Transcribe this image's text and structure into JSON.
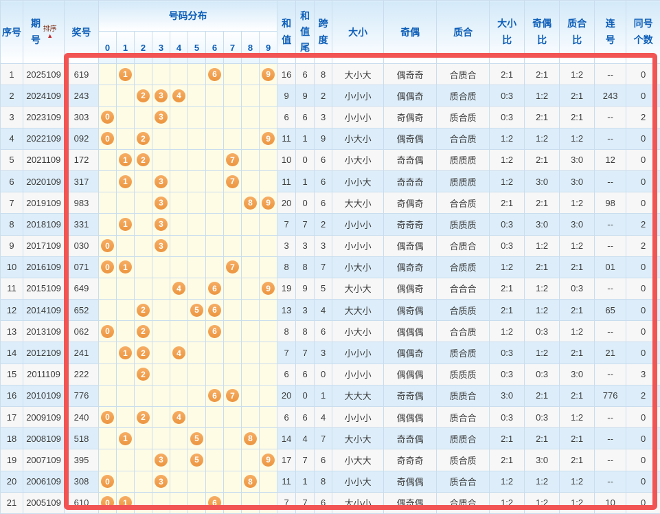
{
  "colors": {
    "accent_red": "#f25454",
    "ball_orange": "#f0a050",
    "header_blue": "#0d5eb8",
    "row_even": "#ddeefa",
    "row_odd": "#f7f7f7",
    "distribution_bg": "#fffce6"
  },
  "table": {
    "headers": {
      "serial": "序号",
      "period": "期号",
      "sort_label": "排序",
      "sort_arrow": "▲",
      "prize": "奖号",
      "distribution": "号码分布",
      "digits": [
        "0",
        "1",
        "2",
        "3",
        "4",
        "5",
        "6",
        "7",
        "8",
        "9"
      ],
      "sum": "和值",
      "sum_tail": "和值尾",
      "span": "跨度",
      "size": "大小",
      "odd_even": "奇偶",
      "prime_composite": "质合",
      "size_ratio": "大小比",
      "odd_even_ratio": "奇偶比",
      "prime_composite_ratio": "质合比",
      "consecutive": "连号",
      "same_count": "同号个数"
    },
    "rows": [
      {
        "no": "1",
        "period": "2025109",
        "prize": "619",
        "balls": [
          1,
          6,
          9
        ],
        "sum": "16",
        "tail": "6",
        "span": "8",
        "size": "大小大",
        "oe": "偶奇奇",
        "pc": "合质合",
        "ratio_size": "2:1",
        "ratio_oe": "2:1",
        "ratio_pc": "1:2",
        "consec": "--",
        "same": "0"
      },
      {
        "no": "2",
        "period": "2024109",
        "prize": "243",
        "balls": [
          2,
          3,
          4
        ],
        "sum": "9",
        "tail": "9",
        "span": "2",
        "size": "小小小",
        "oe": "偶偶奇",
        "pc": "质合质",
        "ratio_size": "0:3",
        "ratio_oe": "1:2",
        "ratio_pc": "2:1",
        "consec": "243",
        "same": "0"
      },
      {
        "no": "3",
        "period": "2023109",
        "prize": "303",
        "balls": [
          0,
          3
        ],
        "sum": "6",
        "tail": "6",
        "span": "3",
        "size": "小小小",
        "oe": "奇偶奇",
        "pc": "质合质",
        "ratio_size": "0:3",
        "ratio_oe": "2:1",
        "ratio_pc": "2:1",
        "consec": "--",
        "same": "2"
      },
      {
        "no": "4",
        "period": "2022109",
        "prize": "092",
        "balls": [
          0,
          2,
          9
        ],
        "sum": "11",
        "tail": "1",
        "span": "9",
        "size": "小大小",
        "oe": "偶奇偶",
        "pc": "合合质",
        "ratio_size": "1:2",
        "ratio_oe": "1:2",
        "ratio_pc": "1:2",
        "consec": "--",
        "same": "0"
      },
      {
        "no": "5",
        "period": "2021109",
        "prize": "172",
        "balls": [
          1,
          2,
          7
        ],
        "sum": "10",
        "tail": "0",
        "span": "6",
        "size": "小大小",
        "oe": "奇奇偶",
        "pc": "质质质",
        "ratio_size": "1:2",
        "ratio_oe": "2:1",
        "ratio_pc": "3:0",
        "consec": "12",
        "same": "0"
      },
      {
        "no": "6",
        "period": "2020109",
        "prize": "317",
        "balls": [
          1,
          3,
          7
        ],
        "sum": "11",
        "tail": "1",
        "span": "6",
        "size": "小小大",
        "oe": "奇奇奇",
        "pc": "质质质",
        "ratio_size": "1:2",
        "ratio_oe": "3:0",
        "ratio_pc": "3:0",
        "consec": "--",
        "same": "0"
      },
      {
        "no": "7",
        "period": "2019109",
        "prize": "983",
        "balls": [
          3,
          8,
          9
        ],
        "sum": "20",
        "tail": "0",
        "span": "6",
        "size": "大大小",
        "oe": "奇偶奇",
        "pc": "合合质",
        "ratio_size": "2:1",
        "ratio_oe": "2:1",
        "ratio_pc": "1:2",
        "consec": "98",
        "same": "0"
      },
      {
        "no": "8",
        "period": "2018109",
        "prize": "331",
        "balls": [
          1,
          3
        ],
        "sum": "7",
        "tail": "7",
        "span": "2",
        "size": "小小小",
        "oe": "奇奇奇",
        "pc": "质质质",
        "ratio_size": "0:3",
        "ratio_oe": "3:0",
        "ratio_pc": "3:0",
        "consec": "--",
        "same": "2"
      },
      {
        "no": "9",
        "period": "2017109",
        "prize": "030",
        "balls": [
          0,
          3
        ],
        "sum": "3",
        "tail": "3",
        "span": "3",
        "size": "小小小",
        "oe": "偶奇偶",
        "pc": "合质合",
        "ratio_size": "0:3",
        "ratio_oe": "1:2",
        "ratio_pc": "1:2",
        "consec": "--",
        "same": "2"
      },
      {
        "no": "10",
        "period": "2016109",
        "prize": "071",
        "balls": [
          0,
          1,
          7
        ],
        "sum": "8",
        "tail": "8",
        "span": "7",
        "size": "小大小",
        "oe": "偶奇奇",
        "pc": "合质质",
        "ratio_size": "1:2",
        "ratio_oe": "2:1",
        "ratio_pc": "2:1",
        "consec": "01",
        "same": "0"
      },
      {
        "no": "11",
        "period": "2015109",
        "prize": "649",
        "balls": [
          4,
          6,
          9
        ],
        "sum": "19",
        "tail": "9",
        "span": "5",
        "size": "大小大",
        "oe": "偶偶奇",
        "pc": "合合合",
        "ratio_size": "2:1",
        "ratio_oe": "1:2",
        "ratio_pc": "0:3",
        "consec": "--",
        "same": "0"
      },
      {
        "no": "12",
        "period": "2014109",
        "prize": "652",
        "balls": [
          2,
          5,
          6
        ],
        "sum": "13",
        "tail": "3",
        "span": "4",
        "size": "大大小",
        "oe": "偶奇偶",
        "pc": "合质质",
        "ratio_size": "2:1",
        "ratio_oe": "1:2",
        "ratio_pc": "2:1",
        "consec": "65",
        "same": "0"
      },
      {
        "no": "13",
        "period": "2013109",
        "prize": "062",
        "balls": [
          0,
          2,
          6
        ],
        "sum": "8",
        "tail": "8",
        "span": "6",
        "size": "小大小",
        "oe": "偶偶偶",
        "pc": "合合质",
        "ratio_size": "1:2",
        "ratio_oe": "0:3",
        "ratio_pc": "1:2",
        "consec": "--",
        "same": "0"
      },
      {
        "no": "14",
        "period": "2012109",
        "prize": "241",
        "balls": [
          1,
          2,
          4
        ],
        "sum": "7",
        "tail": "7",
        "span": "3",
        "size": "小小小",
        "oe": "偶偶奇",
        "pc": "质合质",
        "ratio_size": "0:3",
        "ratio_oe": "1:2",
        "ratio_pc": "2:1",
        "consec": "21",
        "same": "0"
      },
      {
        "no": "15",
        "period": "2011109",
        "prize": "222",
        "balls": [
          2
        ],
        "sum": "6",
        "tail": "6",
        "span": "0",
        "size": "小小小",
        "oe": "偶偶偶",
        "pc": "质质质",
        "ratio_size": "0:3",
        "ratio_oe": "0:3",
        "ratio_pc": "3:0",
        "consec": "--",
        "same": "3"
      },
      {
        "no": "16",
        "period": "2010109",
        "prize": "776",
        "balls": [
          6,
          7
        ],
        "sum": "20",
        "tail": "0",
        "span": "1",
        "size": "大大大",
        "oe": "奇奇偶",
        "pc": "质质合",
        "ratio_size": "3:0",
        "ratio_oe": "2:1",
        "ratio_pc": "2:1",
        "consec": "776",
        "same": "2"
      },
      {
        "no": "17",
        "period": "2009109",
        "prize": "240",
        "balls": [
          0,
          2,
          4
        ],
        "sum": "6",
        "tail": "6",
        "span": "4",
        "size": "小小小",
        "oe": "偶偶偶",
        "pc": "质合合",
        "ratio_size": "0:3",
        "ratio_oe": "0:3",
        "ratio_pc": "1:2",
        "consec": "--",
        "same": "0"
      },
      {
        "no": "18",
        "period": "2008109",
        "prize": "518",
        "balls": [
          1,
          5,
          8
        ],
        "sum": "14",
        "tail": "4",
        "span": "7",
        "size": "大小大",
        "oe": "奇奇偶",
        "pc": "质质合",
        "ratio_size": "2:1",
        "ratio_oe": "2:1",
        "ratio_pc": "2:1",
        "consec": "--",
        "same": "0"
      },
      {
        "no": "19",
        "period": "2007109",
        "prize": "395",
        "balls": [
          3,
          5,
          9
        ],
        "sum": "17",
        "tail": "7",
        "span": "6",
        "size": "小大大",
        "oe": "奇奇奇",
        "pc": "质合质",
        "ratio_size": "2:1",
        "ratio_oe": "3:0",
        "ratio_pc": "2:1",
        "consec": "--",
        "same": "0"
      },
      {
        "no": "20",
        "period": "2006109",
        "prize": "308",
        "balls": [
          0,
          3,
          8
        ],
        "sum": "11",
        "tail": "1",
        "span": "8",
        "size": "小小大",
        "oe": "奇偶偶",
        "pc": "质合合",
        "ratio_size": "1:2",
        "ratio_oe": "1:2",
        "ratio_pc": "1:2",
        "consec": "--",
        "same": "0"
      },
      {
        "no": "21",
        "period": "2005109",
        "prize": "610",
        "balls": [
          0,
          1,
          6
        ],
        "sum": "7",
        "tail": "7",
        "span": "6",
        "size": "大小小",
        "oe": "偶奇偶",
        "pc": "合质合",
        "ratio_size": "1:2",
        "ratio_oe": "1:2",
        "ratio_pc": "1:2",
        "consec": "10",
        "same": "0"
      }
    ]
  }
}
